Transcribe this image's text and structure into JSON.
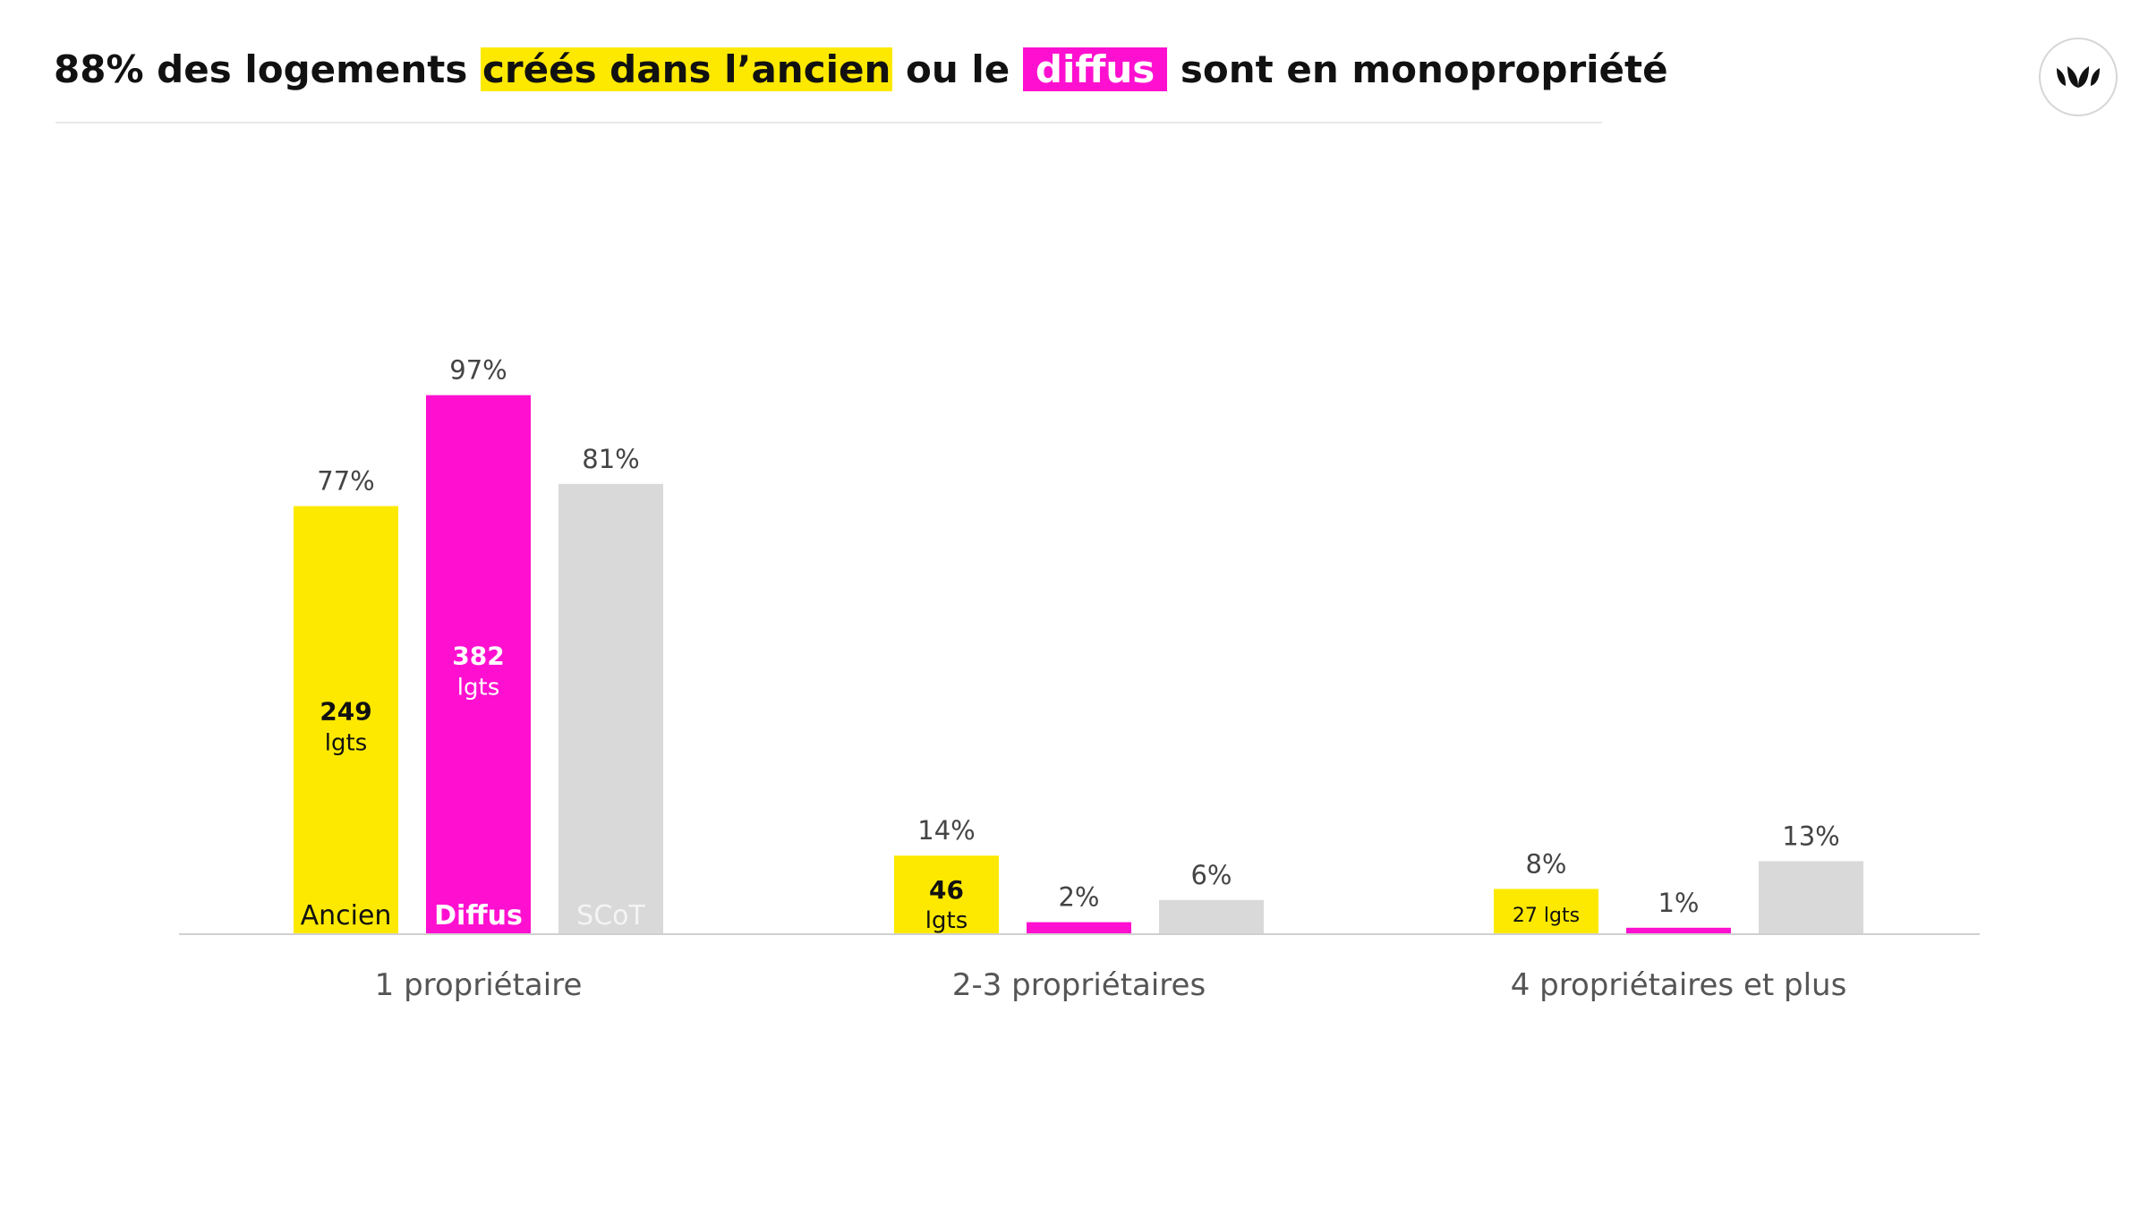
{
  "header": {
    "title_part1": "88% des logements ",
    "title_highlight1": "créés dans l’ancien",
    "title_part2": " ou le ",
    "title_highlight2": "diffus",
    "title_part3": " sont en monopropriété"
  },
  "logo": {
    "icon": "leaf-logo-icon"
  },
  "colors": {
    "yellow": "#fde900",
    "magenta": "#ff10d0",
    "grey": "#d9d9d9",
    "axis": "#d0d0d0",
    "text": "#444444"
  },
  "chart_data": {
    "type": "bar",
    "categories": [
      "1 propriétaire",
      "2-3 propriétaires",
      "4 propriétaires et plus"
    ],
    "series": [
      {
        "name": "Ancien",
        "values": [
          77,
          14,
          8
        ],
        "value_labels": [
          "77%",
          "14%",
          "8%"
        ],
        "count_labels": [
          [
            "249",
            "lgts"
          ],
          [
            "46",
            "lgts"
          ],
          [
            "27 lgts"
          ]
        ]
      },
      {
        "name": "Diffus",
        "values": [
          97,
          2,
          1
        ],
        "value_labels": [
          "97%",
          "2%",
          "1%"
        ],
        "count_labels": [
          [
            "382",
            "lgts"
          ],
          [],
          []
        ]
      },
      {
        "name": "SCoT",
        "values": [
          81,
          6,
          13
        ],
        "value_labels": [
          "81%",
          "6%",
          "13%"
        ],
        "count_labels": [
          [],
          [],
          []
        ]
      }
    ],
    "unit": "%",
    "ylim": [
      0,
      100
    ],
    "grid": false,
    "legend": "bar labels inside first group"
  }
}
